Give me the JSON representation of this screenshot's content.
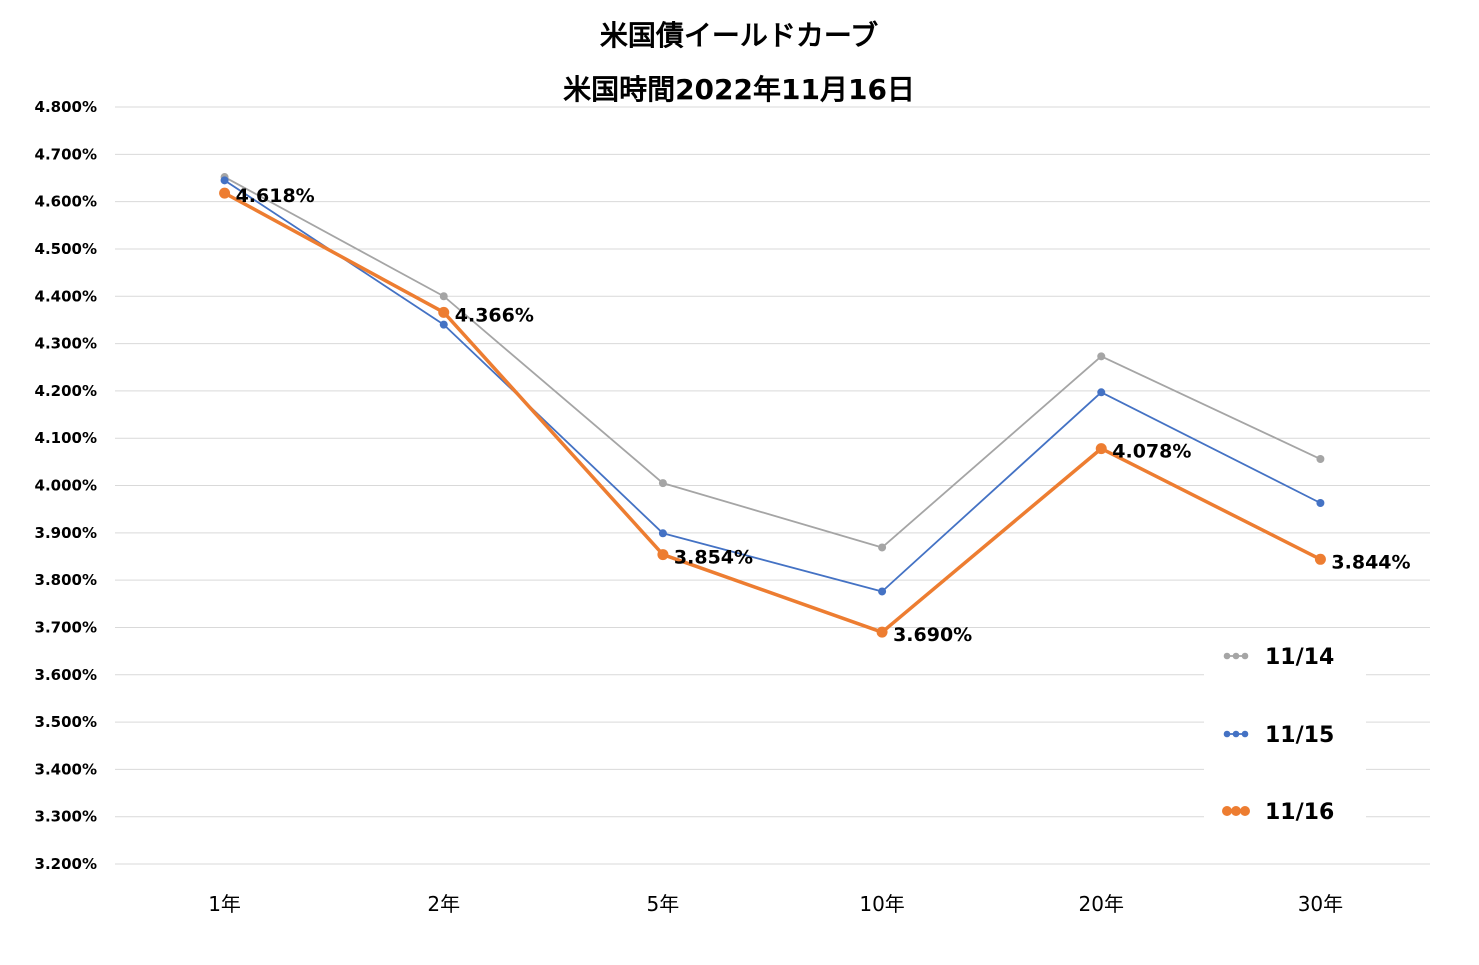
{
  "chart_data": {
    "type": "line",
    "title": "米国債イールドカーブ",
    "subtitle": "米国時間2022年11月16日",
    "categories": [
      "1年",
      "2年",
      "5年",
      "10年",
      "20年",
      "30年"
    ],
    "ylim": [
      3.2,
      4.8
    ],
    "ystep": 0.1,
    "ytick_labels": [
      "3.200%",
      "3.300%",
      "3.400%",
      "3.500%",
      "3.600%",
      "3.700%",
      "3.800%",
      "3.900%",
      "4.000%",
      "4.100%",
      "4.200%",
      "4.300%",
      "4.400%",
      "4.500%",
      "4.600%",
      "4.700%",
      "4.800%"
    ],
    "grid": true,
    "legend_position": "bottom-right",
    "series": [
      {
        "name": "11/14",
        "color": "#a5a5a5",
        "values": [
          4.652,
          4.4,
          4.005,
          3.869,
          4.273,
          4.056
        ],
        "labels": [
          "",
          "",
          "",
          "",
          "",
          ""
        ]
      },
      {
        "name": "11/15",
        "color": "#4472c4",
        "values": [
          4.645,
          4.34,
          3.899,
          3.776,
          4.197,
          3.963
        ],
        "labels": [
          "",
          "",
          "",
          "",
          "",
          ""
        ]
      },
      {
        "name": "11/16",
        "color": "#ed7d31",
        "values": [
          4.618,
          4.366,
          3.854,
          3.69,
          4.078,
          3.844
        ],
        "labels": [
          "4.618%",
          "4.366%",
          "3.854%",
          "3.690%",
          "4.078%",
          "3.844%"
        ]
      }
    ]
  }
}
